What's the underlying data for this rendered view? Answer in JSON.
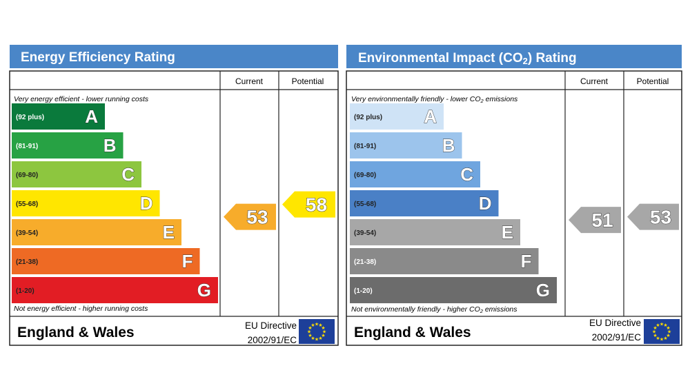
{
  "chart_data": [
    {
      "type": "bar",
      "title": "Energy Efficiency Rating",
      "columns": [
        "Current",
        "Potential"
      ],
      "top_note": "Very energy efficient - lower running costs",
      "bottom_note": "Not energy efficient - higher running costs",
      "bands": [
        {
          "letter": "A",
          "range": "(92 plus)",
          "color": "#0a7a3c",
          "range_color": "#ffffff"
        },
        {
          "letter": "B",
          "range": "(81-91)",
          "color": "#27a244",
          "range_color": "#ffffff"
        },
        {
          "letter": "C",
          "range": "(69-80)",
          "color": "#8dc63f",
          "range_color": "#222222"
        },
        {
          "letter": "D",
          "range": "(55-68)",
          "color": "#ffe600",
          "range_color": "#222222"
        },
        {
          "letter": "E",
          "range": "(39-54)",
          "color": "#f7ac2b",
          "range_color": "#222222"
        },
        {
          "letter": "F",
          "range": "(21-38)",
          "color": "#ee6a24",
          "range_color": "#222222"
        },
        {
          "letter": "G",
          "range": "(1-20)",
          "color": "#e21d24",
          "range_color": "#222222"
        }
      ],
      "current": {
        "value": 53,
        "label": "53",
        "band": "E",
        "color": "#f7ac2b"
      },
      "potential": {
        "value": 58,
        "label": "58",
        "band": "D",
        "color": "#ffe600"
      },
      "footer": {
        "region": "England & Wales",
        "directive_line1": "EU Directive",
        "directive_line2": "2002/91/EC"
      }
    },
    {
      "type": "bar",
      "title": "Environmental Impact (CO2) Rating",
      "title_main": "Environmental Impact (CO",
      "title_sub": "2",
      "title_end": ") Rating",
      "columns": [
        "Current",
        "Potential"
      ],
      "top_note": "Very environmentally friendly - lower CO2 emissions",
      "top_note_main": "Very environmentally friendly - lower CO",
      "top_note_sub": "2",
      "top_note_end": " emissions",
      "bottom_note": "Not environmentally friendly - higher CO2 emissions",
      "bottom_note_main": "Not environmentally friendly - higher CO",
      "bottom_note_sub": "2",
      "bottom_note_end": " emissions",
      "bands": [
        {
          "letter": "A",
          "range": "(92 plus)",
          "color": "#cfe3f6",
          "range_color": "#222222"
        },
        {
          "letter": "B",
          "range": "(81-91)",
          "color": "#9cc4ec",
          "range_color": "#222222"
        },
        {
          "letter": "C",
          "range": "(69-80)",
          "color": "#6fa5df",
          "range_color": "#222222"
        },
        {
          "letter": "D",
          "range": "(55-68)",
          "color": "#4a80c6",
          "range_color": "#222222"
        },
        {
          "letter": "E",
          "range": "(39-54)",
          "color": "#a7a7a7",
          "range_color": "#222222"
        },
        {
          "letter": "F",
          "range": "(21-38)",
          "color": "#8a8a8a",
          "range_color": "#ffffff"
        },
        {
          "letter": "G",
          "range": "(1-20)",
          "color": "#6c6c6c",
          "range_color": "#ffffff"
        }
      ],
      "current": {
        "value": 51,
        "label": "51",
        "band": "E",
        "color": "#a7a7a7"
      },
      "potential": {
        "value": 53,
        "label": "53",
        "band": "E",
        "color": "#a7a7a7"
      },
      "footer": {
        "region": "England & Wales",
        "directive_line1": "EU Directive",
        "directive_line2": "2002/91/EC"
      }
    }
  ],
  "colors": {
    "header": "#4a86c8",
    "eu_flag": "#1d3f99",
    "eu_star": "#ffde00"
  },
  "icons": {
    "eu_flag": "eu-flag-icon"
  }
}
